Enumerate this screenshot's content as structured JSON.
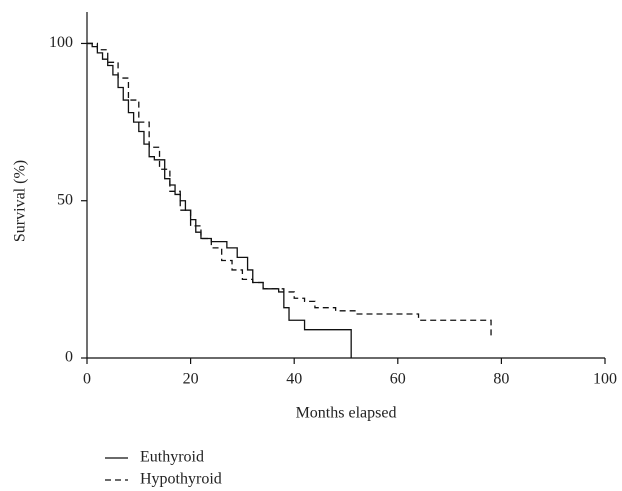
{
  "chart_data": {
    "type": "step",
    "xlabel": "Months elapsed",
    "ylabel": "Survival (%)",
    "xlim": [
      0,
      100
    ],
    "ylim": [
      0,
      110
    ],
    "xticks": [
      0,
      20,
      40,
      60,
      80,
      100
    ],
    "yticks": [
      0,
      50,
      100
    ],
    "legend": "below",
    "series": [
      {
        "name": "Euthyroid",
        "color": "#111111",
        "dash": "none",
        "x": [
          0,
          1,
          2,
          3,
          4,
          5,
          6,
          7,
          8,
          9,
          10,
          11,
          12,
          13,
          15,
          16,
          17,
          18,
          19,
          20,
          21,
          22,
          24,
          27,
          29,
          31,
          32,
          34,
          37,
          38,
          39,
          42,
          51
        ],
        "values": [
          100,
          99,
          97,
          95,
          93,
          90,
          86,
          82,
          78,
          75,
          72,
          68,
          64,
          63,
          57,
          55,
          52,
          50,
          47,
          44,
          40,
          38,
          37,
          35,
          32,
          28,
          24,
          22,
          21,
          16,
          12,
          9,
          0
        ]
      },
      {
        "name": "Hypothyroid",
        "color": "#111111",
        "dash": "6,4",
        "x": [
          0,
          2,
          4,
          6,
          8,
          10,
          12,
          14,
          16,
          18,
          20,
          22,
          24,
          26,
          28,
          30,
          32,
          34,
          38,
          40,
          42,
          44,
          48,
          52,
          58,
          64,
          70,
          78
        ],
        "values": [
          100,
          98,
          94,
          89,
          82,
          75,
          67,
          60,
          53,
          47,
          42,
          38,
          35,
          31,
          28,
          25,
          24,
          22,
          21,
          19,
          18,
          16,
          15,
          14,
          14,
          12,
          12,
          7
        ]
      }
    ]
  }
}
